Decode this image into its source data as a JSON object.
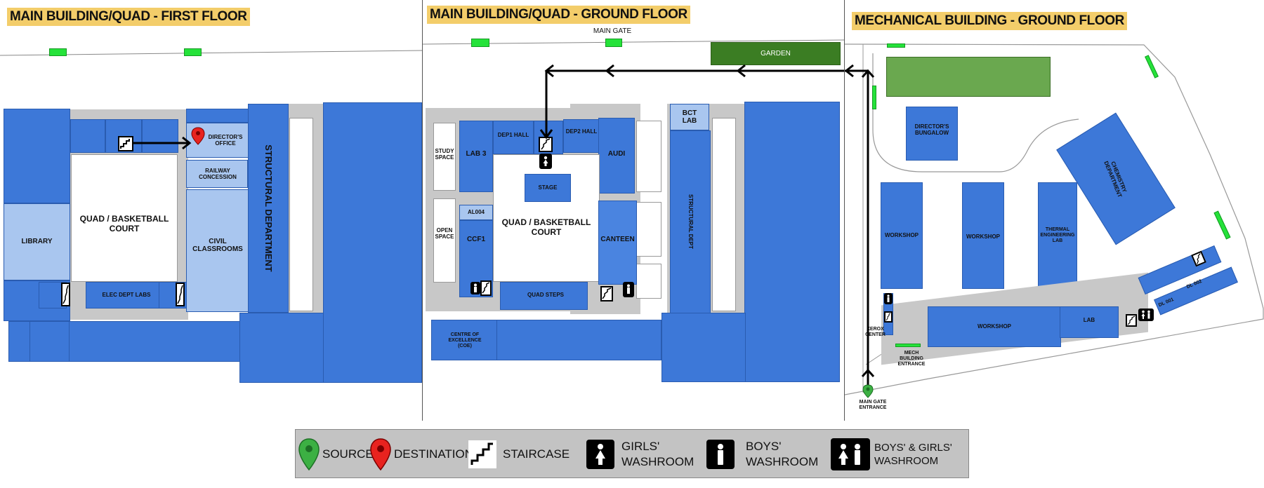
{
  "panels": {
    "first_floor": {
      "title": "MAIN BUILDING/QUAD - FIRST FLOOR",
      "labels": {
        "library": "LIBRARY",
        "quad": "QUAD / BASKETBALL COURT",
        "directors_office": "DIRECTOR'S OFFICE",
        "railway": "RAILWAY CONCESSION",
        "civil": "CIVIL CLASSROOMS",
        "structural": "STRUCTURAL DEPARTMENT",
        "elec": "ELEC DEPT LABS"
      }
    },
    "ground_floor": {
      "title": "MAIN BUILDING/QUAD - GROUND FLOOR",
      "labels": {
        "main_gate": "MAIN GATE",
        "garden": "GARDEN",
        "study_space": "STUDY SPACE",
        "lab3": "LAB 3",
        "dep1": "DEP1 HALL",
        "dep2": "DEP2 HALL",
        "audi": "AUDI",
        "bct": "BCT LAB",
        "stage": "STAGE",
        "al004": "AL004",
        "open_space": "OPEN SPACE",
        "ccf1": "CCF1",
        "quad": "QUAD / BASKETBALL COURT",
        "canteen": "CANTEEN",
        "structural_dept": "STRUCTURAL DEPT",
        "quad_steps": "QUAD STEPS",
        "coe": "CENTRE OF EXCELLENCE (COE)"
      }
    },
    "mech_floor": {
      "title": "MECHANICAL BUILDING - GROUND FLOOR",
      "labels": {
        "directors_bungalow": "DIRECTOR'S BUNGALOW",
        "chemistry": "CHEMISTRY DEPARTMENT",
        "workshop1": "WORKSHOP",
        "workshop2": "WORKSHOP",
        "thermal": "THERMAL ENGINEERING LAB",
        "workshop3": "WORKSHOP",
        "lab": "LAB",
        "dl001": "DL 001",
        "dl002": "DL 002",
        "xerox": "XEROX CENTER",
        "mech_entrance": "MECH BUILDING ENTRANCE",
        "main_gate_entrance": "MAIN GATE ENTRANCE"
      }
    }
  },
  "legend": {
    "source": "SOURCE",
    "destination": "DESTINATION",
    "staircase": "STAIRCASE",
    "girls_line1": "GIRLS'",
    "girls_line2": "WASHROOM",
    "boys_line1": "BOYS'",
    "boys_line2": "WASHROOM",
    "both_line1": "BOYS' & GIRLS'",
    "both_line2": "WASHROOM"
  },
  "colors": {
    "building": "#3d78d8",
    "light_building": "#a9c6ef",
    "garden": "#3b7d23",
    "lawn": "#6aa84f",
    "title_bg": "#f3cd6a",
    "source_pin": "#3cb043",
    "destination_pin": "#e8231f",
    "path": "#000000"
  },
  "icons": [
    "source-pin-icon",
    "destination-pin-icon",
    "staircase-icon",
    "girls-washroom-icon",
    "boys-washroom-icon",
    "unisex-washroom-icon",
    "path-arrow-icon"
  ]
}
